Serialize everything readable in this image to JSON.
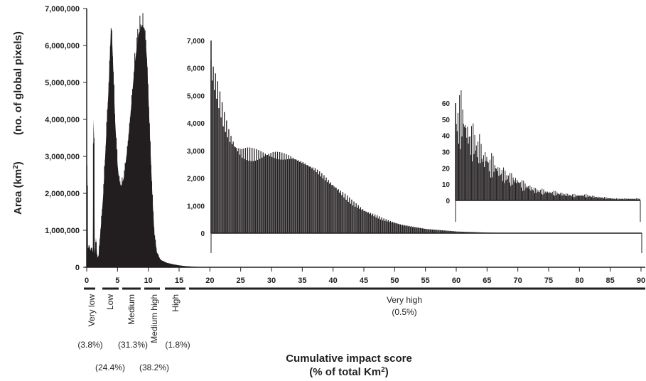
{
  "chart_data": [
    {
      "type": "area",
      "panel": "main",
      "ylabel_main": "Area (km",
      "ylabel_sup": "2",
      "ylabel_close": ")",
      "ylabel_secondary": "(no. of global pixels)",
      "xlabel_line1": "Cumulative impact score",
      "xlabel_line2_main": "(% of total Km",
      "xlabel_line2_sup": "2",
      "xlabel_line2_close": ")",
      "xlim": [
        0,
        90
      ],
      "ylim": [
        0,
        7000000
      ],
      "x_ticks": [
        "0",
        "5",
        "10",
        "15",
        "20",
        "25",
        "30",
        "35",
        "40",
        "45",
        "50",
        "55",
        "60",
        "65",
        "70",
        "75",
        "80",
        "85",
        "90"
      ],
      "y_ticks": [
        "0",
        "1,000,000",
        "2,000,000",
        "3,000,000",
        "4,000,000",
        "5,000,000",
        "6,000,000",
        "7,000,000"
      ],
      "series_points": [
        [
          0,
          2800000
        ],
        [
          0.1,
          2750000
        ],
        [
          0.2,
          500000
        ],
        [
          0.4,
          600000
        ],
        [
          0.6,
          450000
        ],
        [
          0.8,
          550000
        ],
        [
          1.0,
          400000
        ],
        [
          1.1,
          4000000
        ],
        [
          1.2,
          3500000
        ],
        [
          1.3,
          350000
        ],
        [
          1.5,
          800000
        ],
        [
          1.7,
          300000
        ],
        [
          1.9,
          250000
        ],
        [
          2.1,
          700000
        ],
        [
          2.4,
          1300000
        ],
        [
          2.7,
          2000000
        ],
        [
          3.0,
          3000000
        ],
        [
          3.3,
          4000000
        ],
        [
          3.6,
          5000000
        ],
        [
          3.9,
          6300000
        ],
        [
          4.0,
          6500000
        ],
        [
          4.1,
          6300000
        ],
        [
          4.3,
          5400000
        ],
        [
          4.6,
          4000000
        ],
        [
          5.0,
          2800000
        ],
        [
          5.3,
          2300000
        ],
        [
          5.6,
          2200000
        ],
        [
          6.0,
          2400000
        ],
        [
          6.6,
          3200000
        ],
        [
          7.2,
          4300000
        ],
        [
          7.8,
          5500000
        ],
        [
          8.4,
          6300000
        ],
        [
          9.0,
          6550000
        ],
        [
          9.4,
          6450000
        ],
        [
          9.8,
          5600000
        ],
        [
          10.1,
          4300000
        ],
        [
          10.4,
          3000000
        ],
        [
          10.7,
          1800000
        ],
        [
          11.0,
          900000
        ],
        [
          11.4,
          400000
        ],
        [
          12.0,
          200000
        ],
        [
          13.0,
          120000
        ],
        [
          14.0,
          80000
        ],
        [
          15.0,
          50000
        ],
        [
          16.0,
          30000
        ],
        [
          17.0,
          20000
        ],
        [
          18.0,
          10000
        ],
        [
          19.0,
          5000
        ],
        [
          20.0,
          3000
        ]
      ]
    },
    {
      "type": "bar",
      "panel": "inset-1",
      "xlim": [
        20,
        90
      ],
      "ylim": [
        0,
        7000
      ],
      "y_ticks": [
        "0",
        "1,000",
        "2,000",
        "3,000",
        "4,000",
        "5,000",
        "6,000",
        "7,000"
      ],
      "series_points": [
        [
          20,
          6000
        ],
        [
          21,
          5200
        ],
        [
          22,
          4200
        ],
        [
          23,
          3500
        ],
        [
          24,
          3100
        ],
        [
          25,
          2900
        ],
        [
          27,
          2850
        ],
        [
          30,
          2850
        ],
        [
          33,
          2750
        ],
        [
          35,
          2550
        ],
        [
          37,
          2300
        ],
        [
          39,
          1900
        ],
        [
          41,
          1500
        ],
        [
          43,
          1100
        ],
        [
          45,
          800
        ],
        [
          48,
          500
        ],
        [
          51,
          300
        ],
        [
          55,
          150
        ],
        [
          60,
          60
        ],
        [
          65,
          20
        ],
        [
          70,
          0
        ]
      ]
    },
    {
      "type": "bar",
      "panel": "inset-2",
      "xlim": [
        60,
        90
      ],
      "ylim": [
        0,
        60
      ],
      "y_ticks": [
        "0",
        "10",
        "20",
        "30",
        "40",
        "50",
        "60"
      ],
      "series_points": [
        [
          60,
          45
        ],
        [
          60.5,
          47
        ],
        [
          61,
          52
        ],
        [
          61.5,
          46
        ],
        [
          62,
          40
        ],
        [
          62.5,
          35
        ],
        [
          63,
          37
        ],
        [
          63.5,
          30
        ],
        [
          64,
          32
        ],
        [
          64.5,
          24
        ],
        [
          65,
          27
        ],
        [
          65.5,
          20
        ],
        [
          66,
          22
        ],
        [
          67,
          18
        ],
        [
          68,
          15
        ],
        [
          69,
          13
        ],
        [
          70,
          12
        ],
        [
          71,
          9
        ],
        [
          72,
          8
        ],
        [
          73,
          6
        ],
        [
          75,
          5
        ],
        [
          77,
          4
        ],
        [
          79,
          3
        ],
        [
          81,
          3
        ],
        [
          83,
          2
        ],
        [
          86,
          1
        ],
        [
          88,
          1
        ],
        [
          89.5,
          1
        ]
      ]
    }
  ],
  "categories": [
    {
      "label": "Very low",
      "percent": "(3.8%)"
    },
    {
      "label": "Low",
      "percent": "(24.4%)"
    },
    {
      "label": "Medium",
      "percent": "(31.3%)"
    },
    {
      "label": "Medium high",
      "percent": "(38.2%)"
    },
    {
      "label": "High",
      "percent": "(1.8%)"
    },
    {
      "label": "Very high",
      "percent": "(0.5%)"
    }
  ]
}
